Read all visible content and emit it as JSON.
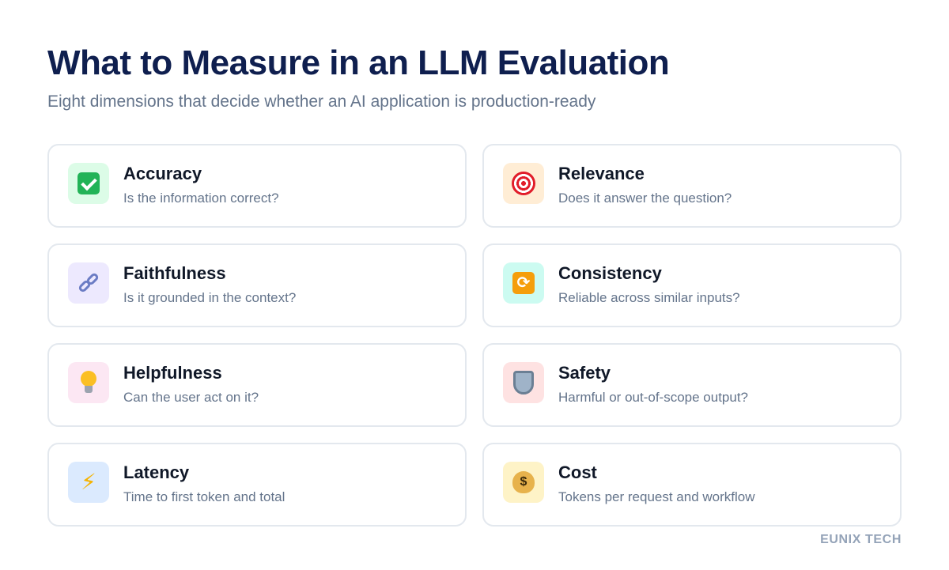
{
  "header": {
    "title": "What to Measure in an LLM Evaluation",
    "subtitle": "Eight dimensions that decide whether an AI application is production-ready"
  },
  "cards": [
    {
      "title": "Accuracy",
      "desc": "Is the information correct?",
      "icon": "check-mark-icon",
      "icon_bg": "#dcfce7"
    },
    {
      "title": "Relevance",
      "desc": "Does it answer the question?",
      "icon": "target-icon",
      "icon_bg": "#ffedd5"
    },
    {
      "title": "Faithfulness",
      "desc": "Is it grounded in the context?",
      "icon": "link-icon",
      "icon_bg": "#ede9fe"
    },
    {
      "title": "Consistency",
      "desc": "Reliable across similar inputs?",
      "icon": "repeat-icon",
      "icon_bg": "#ccfbf1"
    },
    {
      "title": "Helpfulness",
      "desc": "Can the user act on it?",
      "icon": "lightbulb-icon",
      "icon_bg": "#fce7f3"
    },
    {
      "title": "Safety",
      "desc": "Harmful or out-of-scope output?",
      "icon": "shield-icon",
      "icon_bg": "#fee2e2"
    },
    {
      "title": "Latency",
      "desc": "Time to first token and total",
      "icon": "lightning-icon",
      "icon_bg": "#dbeafe"
    },
    {
      "title": "Cost",
      "desc": "Tokens per request and workflow",
      "icon": "money-bag-icon",
      "icon_bg": "#fef3c7"
    }
  ],
  "footer": {
    "brand": "EUNIX TECH"
  }
}
